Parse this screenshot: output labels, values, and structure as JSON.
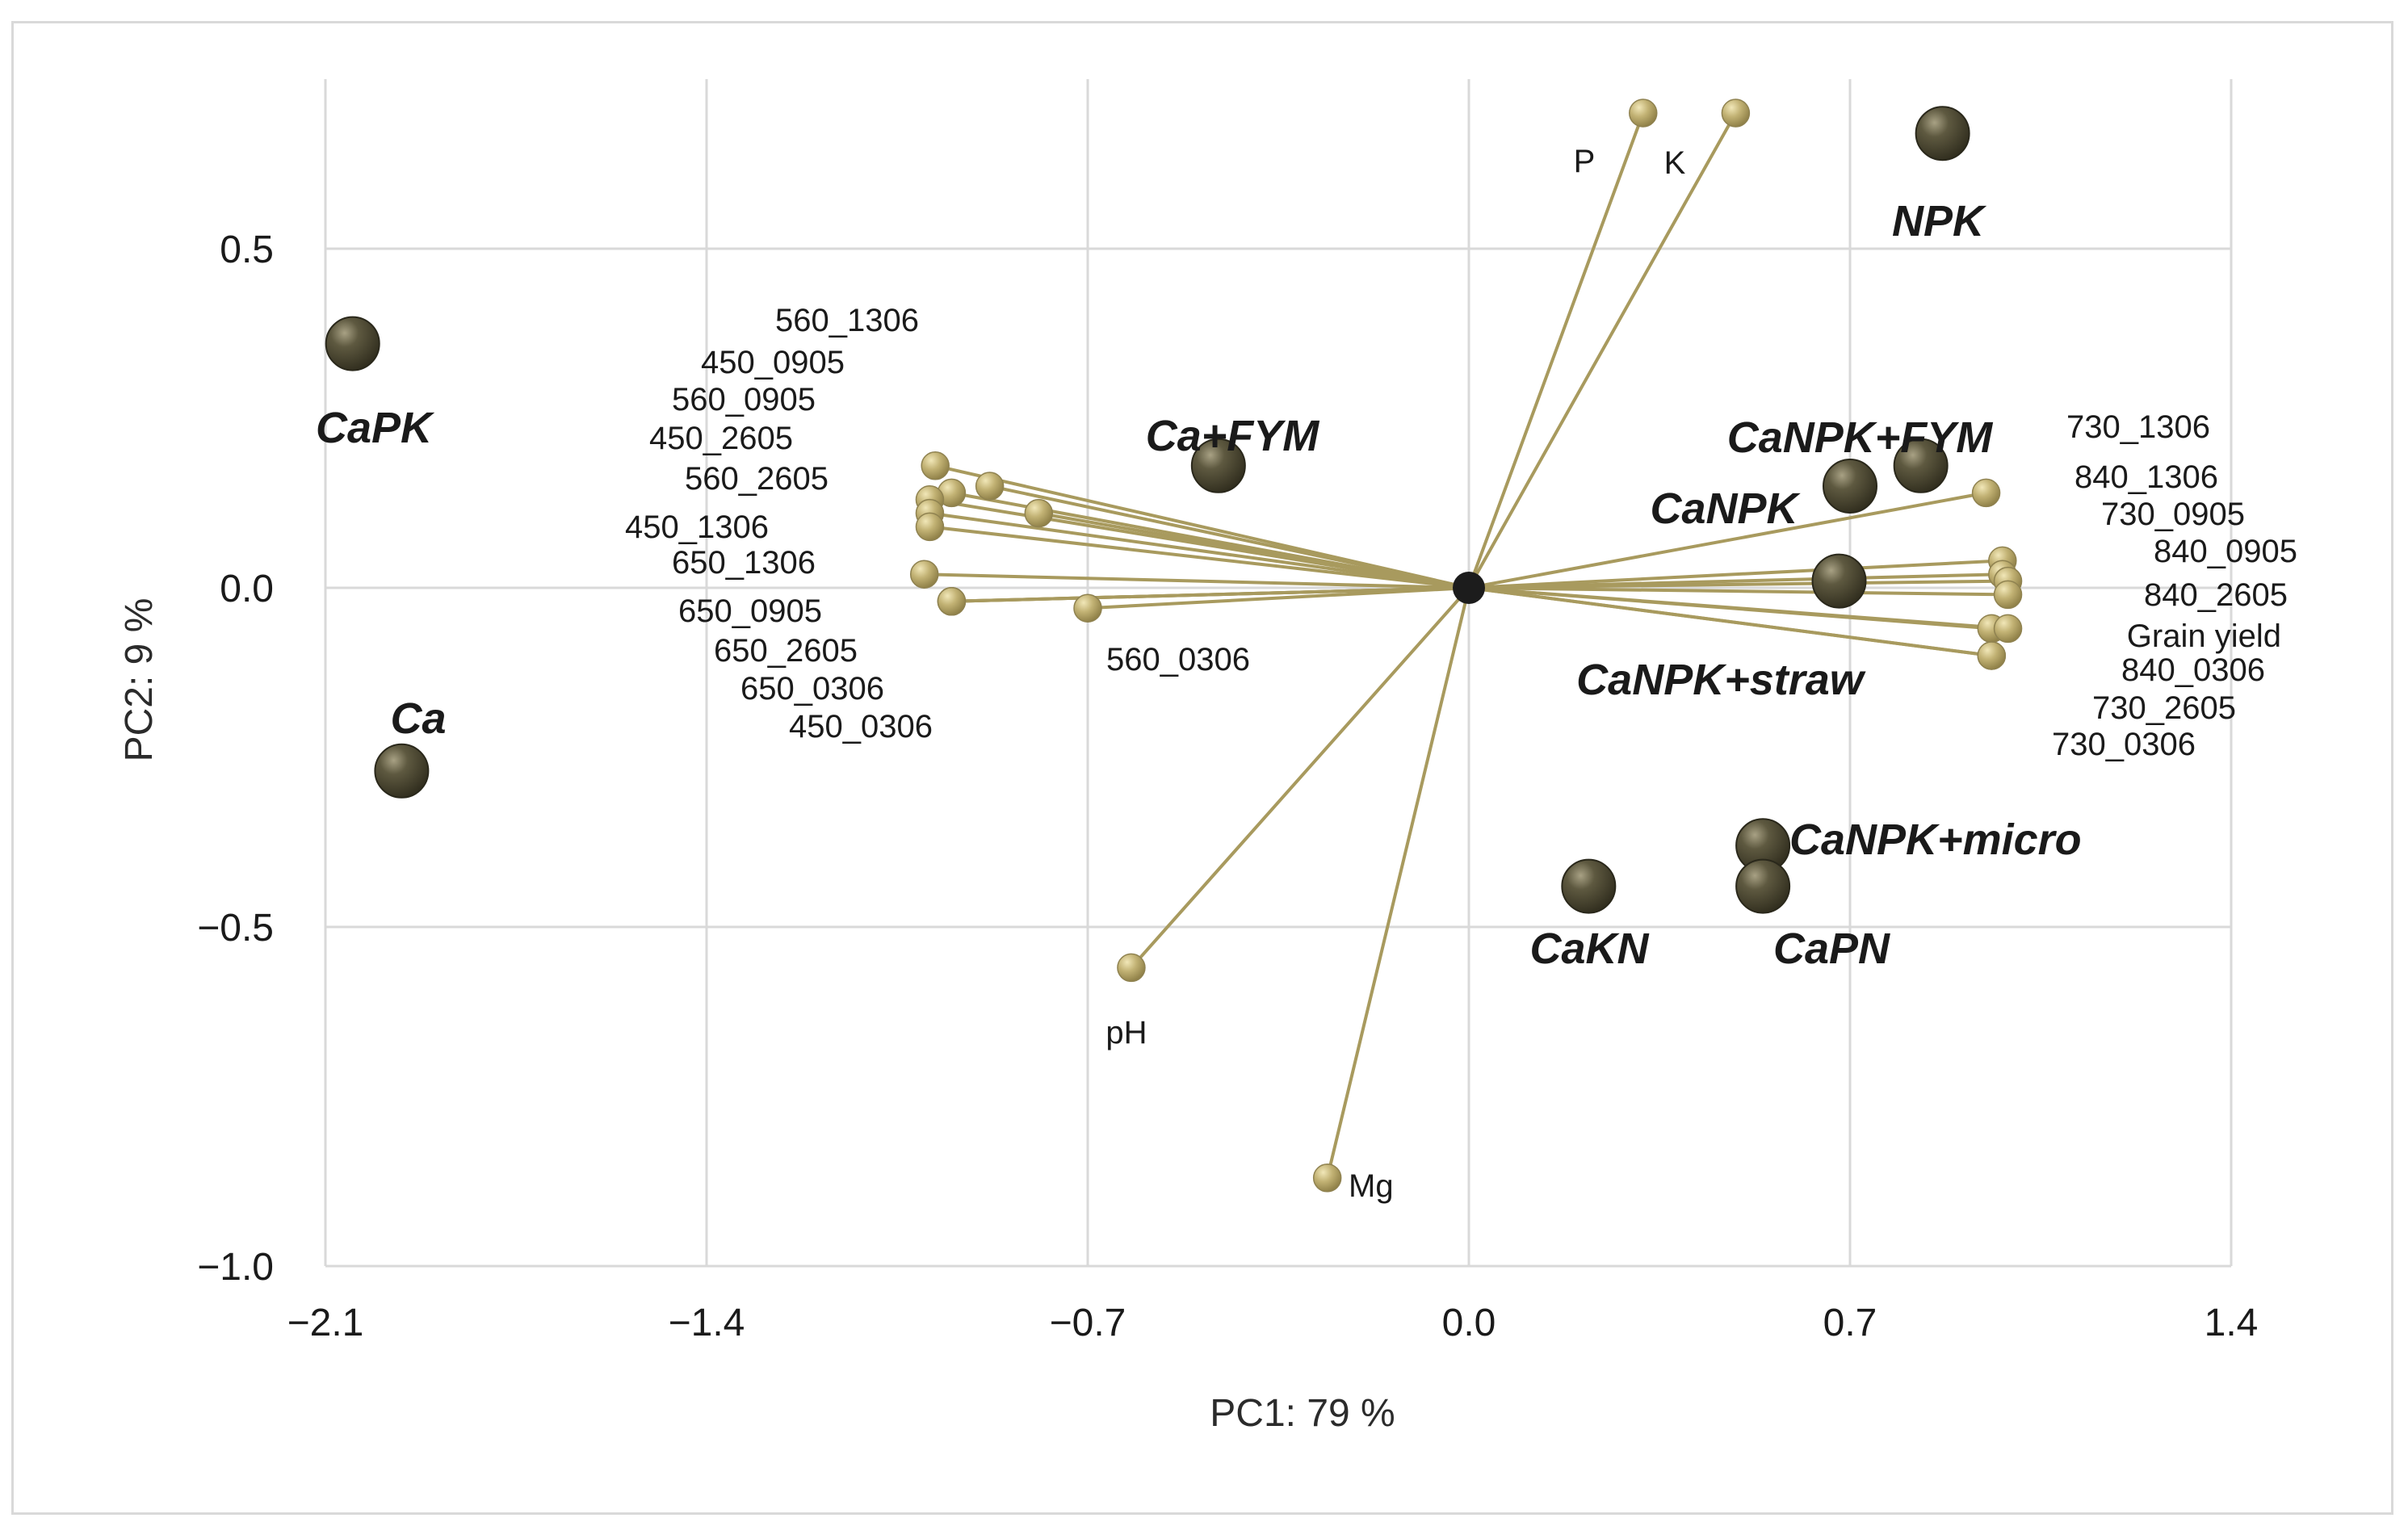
{
  "chart_data": {
    "type": "scatter",
    "subtype": "pca-biplot",
    "xlabel": "PC1: 79 %",
    "ylabel": "PC2: 9 %",
    "xlim": [
      -2.1,
      1.4
    ],
    "ylim": [
      -1.0,
      0.75
    ],
    "x_ticks": [
      -2.1,
      -1.4,
      -0.7,
      0.0,
      0.7,
      1.4
    ],
    "x_tick_labels": [
      "−2.1",
      "−1.4",
      "−0.7",
      "0.0",
      "0.7",
      "1.4"
    ],
    "y_ticks": [
      0.5,
      0.0,
      -0.5,
      -1.0
    ],
    "y_tick_labels": [
      "0.5",
      "0.0",
      "−0.5",
      "−1.0"
    ],
    "grid": true,
    "colors": {
      "treatment": "#4a4632",
      "variable": "#b8a96a",
      "loading_line": "#a89a5e"
    },
    "treatments": [
      {
        "name": "CaPK",
        "x": -2.05,
        "y": 0.36
      },
      {
        "name": "Ca",
        "x": -1.96,
        "y": -0.27
      },
      {
        "name": "Ca+FYM",
        "x": -0.46,
        "y": 0.18
      },
      {
        "name": "NPK",
        "x": 0.87,
        "y": 0.67
      },
      {
        "name": "CaNPK+FYM",
        "x": 0.83,
        "y": 0.18
      },
      {
        "name": "CaNPK",
        "x": 0.7,
        "y": 0.15
      },
      {
        "name": "CaNPK+straw",
        "x": 0.68,
        "y": 0.01
      },
      {
        "name": "CaNPK+micro",
        "x": 0.54,
        "y": -0.38
      },
      {
        "name": "CaPN",
        "x": 0.54,
        "y": -0.44
      },
      {
        "name": "CaKN",
        "x": 0.22,
        "y": -0.44
      }
    ],
    "variables": [
      {
        "name": "P",
        "x": 0.32,
        "y": 0.7
      },
      {
        "name": "K",
        "x": 0.49,
        "y": 0.7
      },
      {
        "name": "Mg",
        "x": -0.26,
        "y": -0.87
      },
      {
        "name": "pH",
        "x": -0.62,
        "y": -0.56
      },
      {
        "name": "560_0306",
        "x": -0.7,
        "y": -0.03
      },
      {
        "name": "560_1306",
        "x": -0.98,
        "y": 0.18
      },
      {
        "name": "450_0905",
        "x": -0.88,
        "y": 0.15
      },
      {
        "name": "560_0905",
        "x": -0.95,
        "y": 0.14
      },
      {
        "name": "450_2605",
        "x": -0.79,
        "y": 0.11
      },
      {
        "name": "560_2605",
        "x": -0.99,
        "y": 0.13
      },
      {
        "name": "450_1306",
        "x": -0.99,
        "y": 0.11
      },
      {
        "name": "650_1306",
        "x": -0.99,
        "y": 0.09
      },
      {
        "name": "650_0905",
        "x": -1.0,
        "y": 0.02
      },
      {
        "name": "650_2605",
        "x": -0.95,
        "y": -0.02
      },
      {
        "name": "650_0306",
        "x": -0.95,
        "y": -0.02
      },
      {
        "name": "450_0306",
        "x": -0.95,
        "y": -0.02
      },
      {
        "name": "730_1306",
        "x": 0.95,
        "y": 0.14
      },
      {
        "name": "840_1306",
        "x": 0.98,
        "y": 0.04
      },
      {
        "name": "730_0905",
        "x": 0.98,
        "y": 0.02
      },
      {
        "name": "840_0905",
        "x": 0.99,
        "y": 0.01
      },
      {
        "name": "840_2605",
        "x": 0.99,
        "y": -0.01
      },
      {
        "name": "Grain yield",
        "x": 0.96,
        "y": -0.06
      },
      {
        "name": "840_0306",
        "x": 0.99,
        "y": -0.06
      },
      {
        "name": "730_2605",
        "x": 0.96,
        "y": -0.1
      },
      {
        "name": "730_0306",
        "x": 0.96,
        "y": -0.1
      }
    ]
  }
}
